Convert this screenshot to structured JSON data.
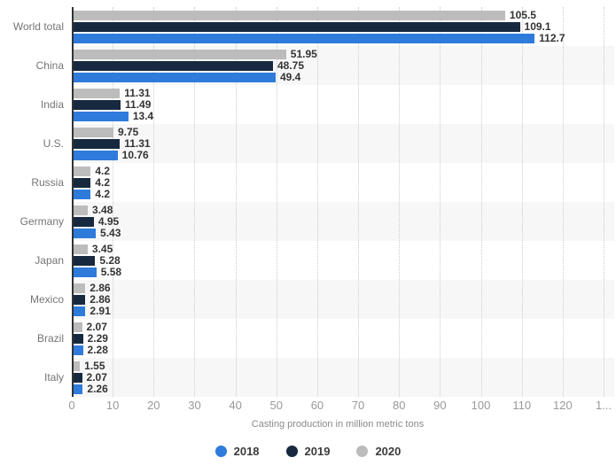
{
  "chart_data": {
    "type": "bar",
    "orientation": "horizontal",
    "title": "",
    "xlabel": "Casting production in million metric tons",
    "ylabel": "",
    "categories": [
      "World total",
      "China",
      "India",
      "U.S.",
      "Russia",
      "Germany",
      "Japan",
      "Mexico",
      "Brazil",
      "Italy"
    ],
    "series": [
      {
        "name": "2018",
        "color": "#2e7bdb",
        "values": [
          112.7,
          49.4,
          13.4,
          10.76,
          4.2,
          5.43,
          5.58,
          2.91,
          2.28,
          2.26
        ]
      },
      {
        "name": "2019",
        "color": "#16293f",
        "values": [
          109.1,
          48.75,
          11.49,
          11.31,
          4.2,
          4.95,
          5.28,
          2.86,
          2.29,
          2.07
        ]
      },
      {
        "name": "2020",
        "color": "#bcbcbc",
        "values": [
          105.5,
          51.95,
          11.31,
          9.75,
          4.2,
          3.48,
          3.45,
          2.86,
          2.07,
          1.55
        ]
      }
    ],
    "bar_group_order_top_to_bottom": [
      "2020",
      "2019",
      "2018"
    ],
    "x_ticks": [
      "0",
      "10",
      "20",
      "30",
      "40",
      "50",
      "60",
      "70",
      "80",
      "90",
      "100",
      "110",
      "120",
      "1..."
    ],
    "xlim": [
      0,
      130
    ],
    "grid": "vertical-dotted",
    "row_band_color": "#f7f7f7",
    "legend_position": "bottom",
    "legend": [
      "2018",
      "2019",
      "2020"
    ]
  }
}
